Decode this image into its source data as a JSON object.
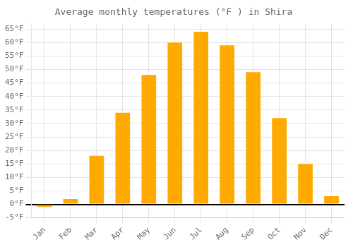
{
  "chart_data": {
    "type": "bar",
    "title": "Average monthly temperatures (°F ) in Shira",
    "categories": [
      "Jan",
      "Feb",
      "Mar",
      "Apr",
      "May",
      "Jun",
      "Jul",
      "Aug",
      "Sep",
      "Oct",
      "Nov",
      "Dec"
    ],
    "values": [
      -1,
      2,
      18,
      34,
      48,
      60,
      64,
      59,
      49,
      32,
      15,
      3
    ],
    "color": "#FFAA00",
    "ylim": [
      -5,
      67
    ],
    "yticks": [
      {
        "value": -5,
        "label": "-5°F"
      },
      {
        "value": 0,
        "label": "0°F"
      },
      {
        "value": 5,
        "label": "5°F"
      },
      {
        "value": 10,
        "label": "10°F"
      },
      {
        "value": 15,
        "label": "15°F"
      },
      {
        "value": 20,
        "label": "20°F"
      },
      {
        "value": 25,
        "label": "25°F"
      },
      {
        "value": 30,
        "label": "30°F"
      },
      {
        "value": 35,
        "label": "35°F"
      },
      {
        "value": 40,
        "label": "40°F"
      },
      {
        "value": 45,
        "label": "45°F"
      },
      {
        "value": 50,
        "label": "50°F"
      },
      {
        "value": 55,
        "label": "55°F"
      },
      {
        "value": 60,
        "label": "60°F"
      },
      {
        "value": 65,
        "label": "65°F"
      }
    ],
    "grid": true
  }
}
